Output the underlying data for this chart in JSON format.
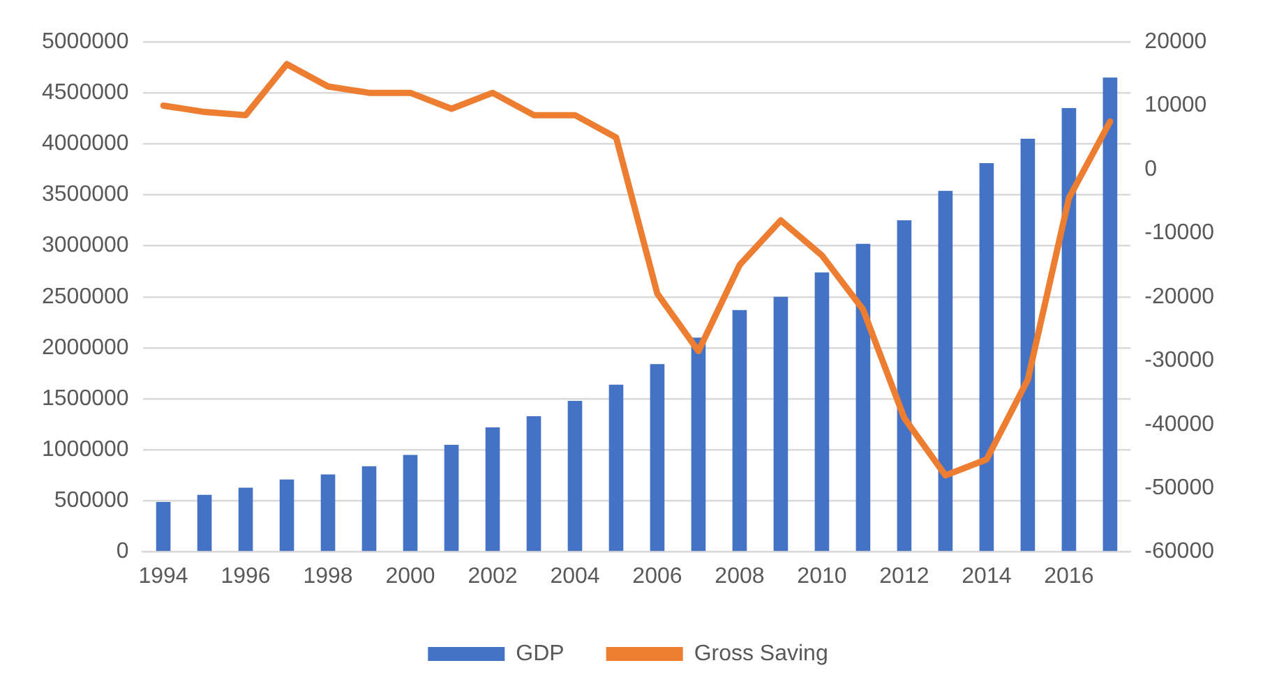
{
  "chart_data": {
    "type": "bar",
    "categories": [
      "1994",
      null,
      "1996",
      null,
      "1998",
      null,
      "2000",
      null,
      "2002",
      null,
      "2004",
      null,
      "2006",
      null,
      "2008",
      null,
      "2010",
      null,
      "2012",
      null,
      "2014",
      null,
      "2016",
      null
    ],
    "series": [
      {
        "name": "GDP",
        "color": "#4472c4",
        "values": [
          490000,
          560000,
          630000,
          710000,
          760000,
          840000,
          950000,
          1050000,
          1220000,
          1330000,
          1480000,
          1640000,
          1840000,
          2100000,
          2370000,
          2500000,
          2740000,
          3020000,
          3250000,
          3540000,
          3810000,
          4050000,
          4350000,
          4650000
        ]
      },
      {
        "name": "Gross Saving",
        "type": "line",
        "axis": "y2",
        "color": "#ed7d31",
        "values": [
          10000,
          9000,
          8500,
          16500,
          13000,
          12000,
          12000,
          9500,
          12000,
          8500,
          8500,
          5000,
          -19500,
          -28500,
          -15000,
          -8000,
          -13500,
          -22000,
          -39000,
          -48000,
          -45500,
          -33000,
          -4500,
          7500
        ]
      }
    ],
    "ylim": [
      0,
      5000000
    ],
    "yticks": [
      0,
      500000,
      1000000,
      1500000,
      2000000,
      2500000,
      3000000,
      3500000,
      4000000,
      4500000,
      5000000
    ],
    "y2lim": [
      -60000,
      20000
    ],
    "y2ticks": [
      -60000,
      -50000,
      -40000,
      -30000,
      -20000,
      -10000,
      0,
      10000,
      20000
    ],
    "grid": "y",
    "legend": "bottom",
    "marker": "none",
    "line_style": "solid"
  }
}
